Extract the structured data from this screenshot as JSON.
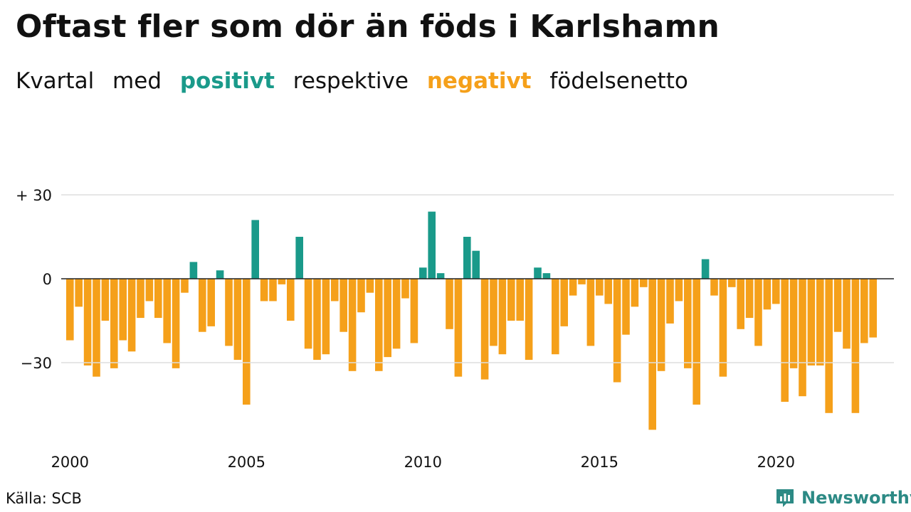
{
  "title": "Oftast fler som dör än föds i Karlshamn",
  "subtitle": {
    "part1": "Kvartal",
    "part2": "med",
    "positive": "positivt",
    "part3": "respektive",
    "negative": "negativt",
    "part4": "födelsenetto"
  },
  "source": "Källa: SCB",
  "brand": {
    "name": "Newsworthy",
    "icon": "newsworthy-logo-icon"
  },
  "colors": {
    "positive": "#1a9a8a",
    "negative": "#f5a01a",
    "grid": "#dddddd",
    "brand": "#2c8a85"
  },
  "chart_data": {
    "type": "bar",
    "title": "Oftast fler som dör än föds i Karlshamn",
    "xlabel": "",
    "ylabel": "",
    "ylim": [
      -54,
      30
    ],
    "y_ticks": [
      {
        "value": 30,
        "label": "+ 30"
      },
      {
        "value": 0,
        "label": "0"
      },
      {
        "value": -30,
        "label": "−30"
      }
    ],
    "x_ticks": [
      "2000",
      "2005",
      "2010",
      "2015",
      "2020"
    ],
    "start_year": 2000,
    "start_quarter": 1,
    "grid": true,
    "values": [
      -22,
      -10,
      -31,
      -35,
      -15,
      -32,
      -22,
      -26,
      -14,
      -8,
      -14,
      -23,
      -32,
      -5,
      6,
      -19,
      -17,
      3,
      -24,
      -29,
      -45,
      21,
      -8,
      -8,
      -2,
      -15,
      15,
      -25,
      -29,
      -27,
      -8,
      -19,
      -33,
      -12,
      -5,
      -33,
      -28,
      -25,
      -7,
      -23,
      4,
      24,
      2,
      -18,
      -35,
      15,
      10,
      -36,
      -24,
      -27,
      -15,
      -15,
      -29,
      4,
      2,
      -27,
      -17,
      -6,
      -2,
      -24,
      -6,
      -9,
      -37,
      -20,
      -10,
      -3,
      -54,
      -33,
      -16,
      -8,
      -32,
      -45,
      7,
      -6,
      -35,
      -3,
      -18,
      -14,
      -24,
      -11,
      -9,
      -44,
      -32,
      -42,
      -31,
      -31,
      -48,
      -19,
      -25,
      -48,
      -23,
      -21
    ]
  }
}
